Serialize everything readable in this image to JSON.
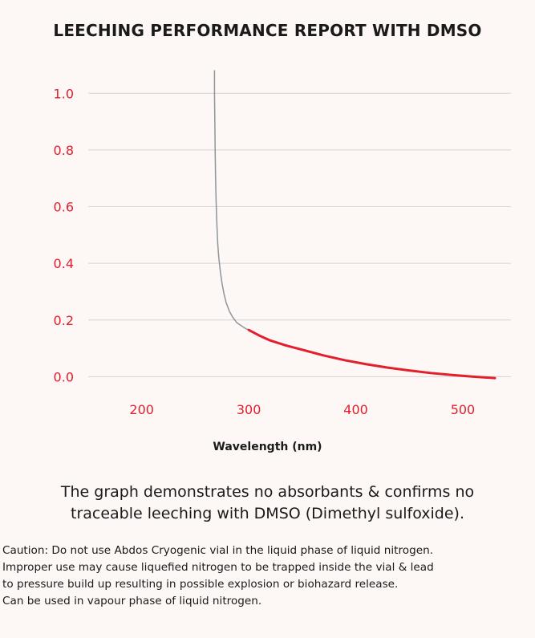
{
  "colors": {
    "accent": "#e31e2d",
    "curve_upper": "#8f969b",
    "grid": "#d5d5d5",
    "text": "#1a1a1a"
  },
  "title": "LEECHING PERFORMANCE REPORT WITH DMSO",
  "chart_data": {
    "type": "line",
    "title": "LEECHING PERFORMANCE REPORT WITH DMSO",
    "xlabel": "Wavelength (nm)",
    "ylabel": "",
    "xlim": [
      150,
      545
    ],
    "ylim": [
      -0.03,
      1.08
    ],
    "x_ticks": [
      200,
      300,
      400,
      500
    ],
    "x_tick_labels": [
      "200",
      "300",
      "400",
      "500"
    ],
    "y_ticks": [
      0.0,
      0.2,
      0.4,
      0.6,
      0.8,
      1.0
    ],
    "y_tick_labels": [
      "0.0",
      "0.2",
      "0.4",
      "0.6",
      "0.8",
      "1.0"
    ],
    "grid": "horizontal",
    "legend": "none",
    "series": [
      {
        "color": "#8f969b",
        "x": [
          268,
          268,
          268.3,
          268.6,
          269,
          269.5,
          270.2,
          271,
          272,
          273.5,
          275,
          277,
          279,
          282,
          285,
          289,
          293,
          297,
          300
        ],
        "y": [
          1.08,
          1.0,
          0.9,
          0.8,
          0.7,
          0.62,
          0.54,
          0.47,
          0.42,
          0.37,
          0.33,
          0.29,
          0.26,
          0.23,
          0.21,
          0.19,
          0.18,
          0.17,
          0.165
        ]
      },
      {
        "color": "#e31e2d",
        "x": [
          300,
          310,
          320,
          335,
          350,
          370,
          390,
          410,
          430,
          450,
          470,
          490,
          510,
          530
        ],
        "y": [
          0.165,
          0.145,
          0.128,
          0.11,
          0.095,
          0.075,
          0.058,
          0.044,
          0.032,
          0.022,
          0.013,
          0.006,
          0.0,
          -0.005
        ]
      }
    ]
  },
  "summary": [
    "The graph demonstrates no absorbants & confirms no",
    "traceable leeching with DMSO (Dimethyl sulfoxide)."
  ],
  "caution": [
    "Caution: Do not use Abdos Cryogenic vial in the liquid phase of liquid nitrogen.",
    "Improper use may cause liquefied nitrogen to be trapped inside the vial & lead",
    "to pressure build up resulting in possible explosion or biohazard release.",
    "Can be used in vapour phase of liquid nitrogen."
  ]
}
